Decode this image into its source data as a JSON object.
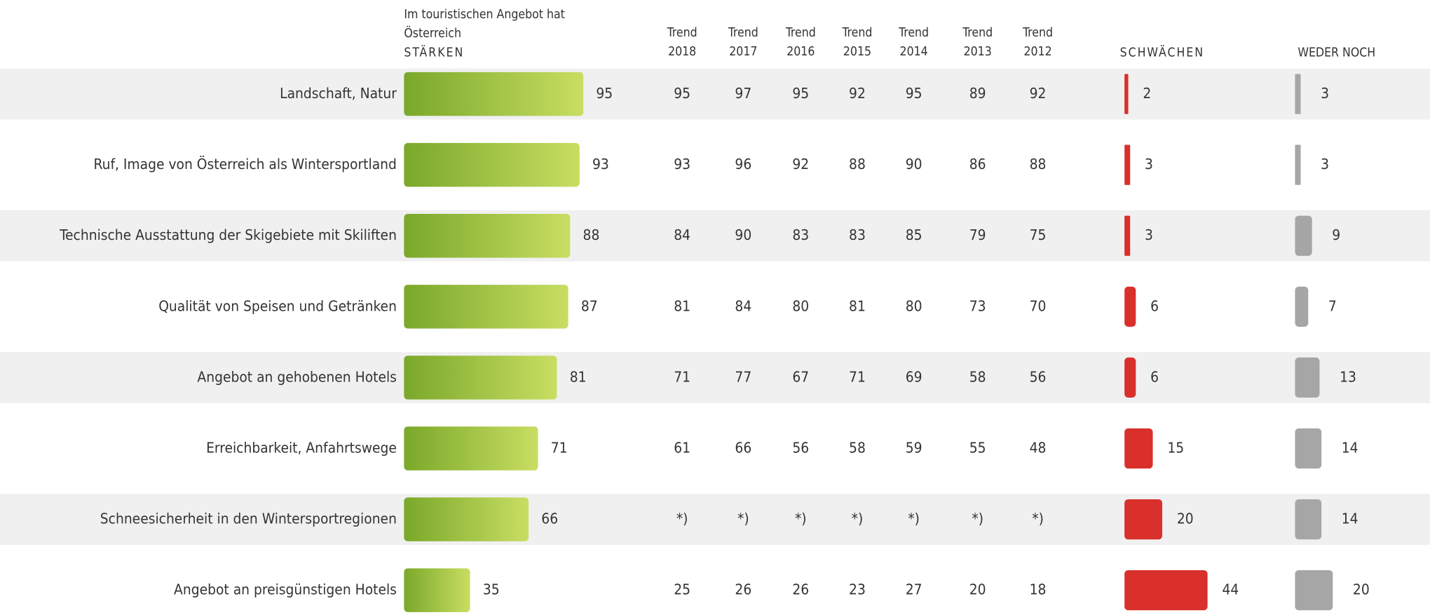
{
  "header": {
    "intro": [
      "Im touristischen Angebot hat",
      "Österreich"
    ],
    "strengths": "STÄRKEN",
    "trend_columns": [
      {
        "label": "Trend",
        "year": "2018"
      },
      {
        "label": "Trend",
        "year": "2017"
      },
      {
        "label": "Trend",
        "year": "2016"
      },
      {
        "label": "Trend",
        "year": "2015"
      },
      {
        "label": "Trend",
        "year": "2014"
      },
      {
        "label": "Trend",
        "year": "2013"
      },
      {
        "label": "Trend",
        "year": "2012"
      }
    ],
    "weaknesses": "SCHWÄCHEN",
    "neither": "WEDER NOCH"
  },
  "colors": {
    "strengths": [
      "#7aa82a",
      "#c8de62"
    ],
    "weaknesses": "#d9302c",
    "neither": "#a6a6a6",
    "stripe": "#f0f0f0"
  },
  "rows": [
    {
      "label": "Landschaft, Natur",
      "strengths": 95,
      "trends": [
        95,
        97,
        95,
        92,
        95,
        89,
        92
      ],
      "weaknesses": 2,
      "neither": 3
    },
    {
      "label": "Ruf, Image von Österreich als Wintersportland",
      "strengths": 93,
      "trends": [
        93,
        96,
        92,
        88,
        90,
        86,
        88
      ],
      "weaknesses": 3,
      "neither": 3
    },
    {
      "label": "Technische Ausstattung der Skigebiete mit Skiliften",
      "strengths": 88,
      "trends": [
        84,
        90,
        83,
        83,
        85,
        79,
        75
      ],
      "weaknesses": 3,
      "neither": 9
    },
    {
      "label": "Qualität von Speisen und Getränken",
      "strengths": 87,
      "trends": [
        81,
        84,
        80,
        81,
        80,
        73,
        70
      ],
      "weaknesses": 6,
      "neither": 7
    },
    {
      "label": "Angebot an gehobenen Hotels",
      "strengths": 81,
      "trends": [
        71,
        77,
        67,
        71,
        69,
        58,
        56
      ],
      "weaknesses": 6,
      "neither": 13
    },
    {
      "label": "Erreichbarkeit, Anfahrtswege",
      "strengths": 71,
      "trends": [
        61,
        66,
        56,
        58,
        59,
        55,
        48
      ],
      "weaknesses": 15,
      "neither": 14
    },
    {
      "label": "Schneesicherheit in den Wintersportregionen",
      "strengths": 66,
      "trends": [
        "*)",
        "*)",
        "*)",
        "*)",
        "*)",
        "*)",
        "*)"
      ],
      "weaknesses": 20,
      "neither": 14
    },
    {
      "label": "Angebot an preisgünstigen Hotels",
      "strengths": 35,
      "trends": [
        25,
        26,
        26,
        23,
        27,
        20,
        18
      ],
      "weaknesses": 44,
      "neither": 20
    }
  ]
}
